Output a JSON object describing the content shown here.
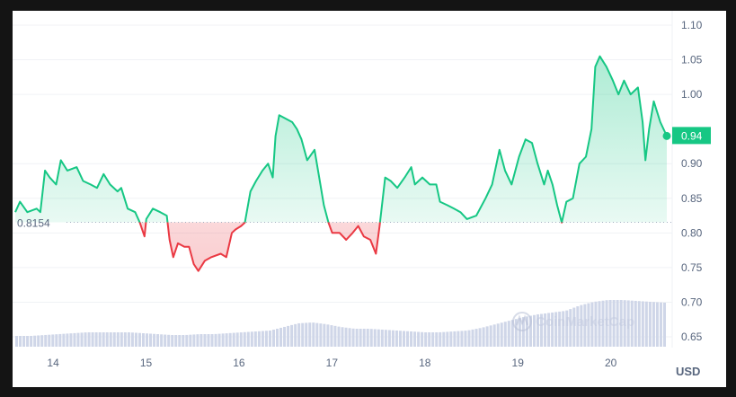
{
  "chart_data": {
    "type": "line",
    "title": "",
    "currency_label": "USD",
    "baseline": {
      "value": 0.8154,
      "label": "0.8154"
    },
    "current_price": {
      "value": 0.94,
      "label": "0.94"
    },
    "ylim": [
      0.65,
      1.1
    ],
    "yticks": [
      {
        "value": 1.1,
        "label": "1.10"
      },
      {
        "value": 1.05,
        "label": "1.05"
      },
      {
        "value": 1.0,
        "label": "1.00"
      },
      {
        "value": 0.9,
        "label": "0.90"
      },
      {
        "value": 0.85,
        "label": "0.85"
      },
      {
        "value": 0.8,
        "label": "0.80"
      },
      {
        "value": 0.75,
        "label": "0.75"
      },
      {
        "value": 0.7,
        "label": "0.70"
      },
      {
        "value": 0.65,
        "label": "0.65"
      }
    ],
    "xlim": [
      13.59,
      20.6
    ],
    "xticks": [
      {
        "value": 14,
        "label": "14"
      },
      {
        "value": 15,
        "label": "15"
      },
      {
        "value": 16,
        "label": "16"
      },
      {
        "value": 17,
        "label": "17"
      },
      {
        "value": 18,
        "label": "18"
      },
      {
        "value": 19,
        "label": "19"
      },
      {
        "value": 20,
        "label": "20"
      }
    ],
    "colors": {
      "up": "#16c784",
      "down": "#ea3943",
      "volume": "#cfd6e8",
      "grid": "#f0f2f5"
    },
    "series": [
      {
        "name": "Price",
        "points": [
          [
            13.59,
            0.83
          ],
          [
            13.64,
            0.845
          ],
          [
            13.72,
            0.83
          ],
          [
            13.82,
            0.835
          ],
          [
            13.86,
            0.83
          ],
          [
            13.91,
            0.89
          ],
          [
            13.96,
            0.88
          ],
          [
            14.03,
            0.87
          ],
          [
            14.08,
            0.905
          ],
          [
            14.15,
            0.89
          ],
          [
            14.25,
            0.895
          ],
          [
            14.32,
            0.875
          ],
          [
            14.4,
            0.87
          ],
          [
            14.47,
            0.865
          ],
          [
            14.54,
            0.885
          ],
          [
            14.61,
            0.87
          ],
          [
            14.69,
            0.86
          ],
          [
            14.73,
            0.865
          ],
          [
            14.8,
            0.835
          ],
          [
            14.88,
            0.83
          ],
          [
            14.93,
            0.815
          ],
          [
            14.98,
            0.795
          ],
          [
            15.0,
            0.82
          ],
          [
            15.07,
            0.835
          ],
          [
            15.15,
            0.83
          ],
          [
            15.22,
            0.825
          ],
          [
            15.25,
            0.79
          ],
          [
            15.29,
            0.765
          ],
          [
            15.34,
            0.785
          ],
          [
            15.41,
            0.78
          ],
          [
            15.46,
            0.78
          ],
          [
            15.51,
            0.755
          ],
          [
            15.56,
            0.745
          ],
          [
            15.63,
            0.76
          ],
          [
            15.7,
            0.765
          ],
          [
            15.8,
            0.77
          ],
          [
            15.86,
            0.765
          ],
          [
            15.92,
            0.8
          ],
          [
            15.96,
            0.805
          ],
          [
            16.02,
            0.81
          ],
          [
            16.06,
            0.815
          ],
          [
            16.12,
            0.86
          ],
          [
            16.18,
            0.875
          ],
          [
            16.25,
            0.89
          ],
          [
            16.31,
            0.9
          ],
          [
            16.36,
            0.88
          ],
          [
            16.39,
            0.94
          ],
          [
            16.43,
            0.97
          ],
          [
            16.5,
            0.965
          ],
          [
            16.57,
            0.96
          ],
          [
            16.62,
            0.95
          ],
          [
            16.67,
            0.935
          ],
          [
            16.73,
            0.905
          ],
          [
            16.81,
            0.92
          ],
          [
            16.86,
            0.88
          ],
          [
            16.91,
            0.84
          ],
          [
            16.96,
            0.815
          ],
          [
            17.0,
            0.8
          ],
          [
            17.08,
            0.8
          ],
          [
            17.15,
            0.79
          ],
          [
            17.22,
            0.8
          ],
          [
            17.28,
            0.81
          ],
          [
            17.34,
            0.795
          ],
          [
            17.41,
            0.79
          ],
          [
            17.47,
            0.77
          ],
          [
            17.51,
            0.81
          ],
          [
            17.57,
            0.88
          ],
          [
            17.63,
            0.875
          ],
          [
            17.7,
            0.865
          ],
          [
            17.78,
            0.88
          ],
          [
            17.85,
            0.895
          ],
          [
            17.89,
            0.87
          ],
          [
            17.97,
            0.88
          ],
          [
            18.05,
            0.87
          ],
          [
            18.12,
            0.87
          ],
          [
            18.16,
            0.845
          ],
          [
            18.24,
            0.84
          ],
          [
            18.31,
            0.835
          ],
          [
            18.38,
            0.83
          ],
          [
            18.45,
            0.82
          ],
          [
            18.55,
            0.825
          ],
          [
            18.65,
            0.85
          ],
          [
            18.72,
            0.87
          ],
          [
            18.8,
            0.92
          ],
          [
            18.86,
            0.89
          ],
          [
            18.93,
            0.87
          ],
          [
            19.01,
            0.91
          ],
          [
            19.08,
            0.935
          ],
          [
            19.15,
            0.93
          ],
          [
            19.21,
            0.9
          ],
          [
            19.28,
            0.87
          ],
          [
            19.32,
            0.89
          ],
          [
            19.37,
            0.87
          ],
          [
            19.42,
            0.84
          ],
          [
            19.47,
            0.815
          ],
          [
            19.52,
            0.845
          ],
          [
            19.59,
            0.85
          ],
          [
            19.66,
            0.9
          ],
          [
            19.73,
            0.91
          ],
          [
            19.79,
            0.95
          ],
          [
            19.83,
            1.04
          ],
          [
            19.88,
            1.055
          ],
          [
            19.95,
            1.04
          ],
          [
            20.02,
            1.02
          ],
          [
            20.08,
            1.0
          ],
          [
            20.14,
            1.02
          ],
          [
            20.21,
            1.0
          ],
          [
            20.29,
            1.01
          ],
          [
            20.34,
            0.96
          ],
          [
            20.37,
            0.905
          ],
          [
            20.41,
            0.95
          ],
          [
            20.46,
            0.99
          ],
          [
            20.53,
            0.96
          ],
          [
            20.6,
            0.94
          ]
        ]
      }
    ],
    "volume_relative": [
      12,
      12,
      13,
      14,
      15,
      16,
      16,
      16,
      16,
      15,
      14,
      13,
      13,
      14,
      14,
      15,
      16,
      17,
      18,
      22,
      26,
      27,
      25,
      22,
      20,
      20,
      19,
      18,
      17,
      16,
      16,
      17,
      18,
      21,
      25,
      29,
      33,
      36,
      38,
      40,
      46,
      50,
      52,
      52,
      51,
      50,
      49
    ]
  },
  "watermark": "CoinMarketCap"
}
